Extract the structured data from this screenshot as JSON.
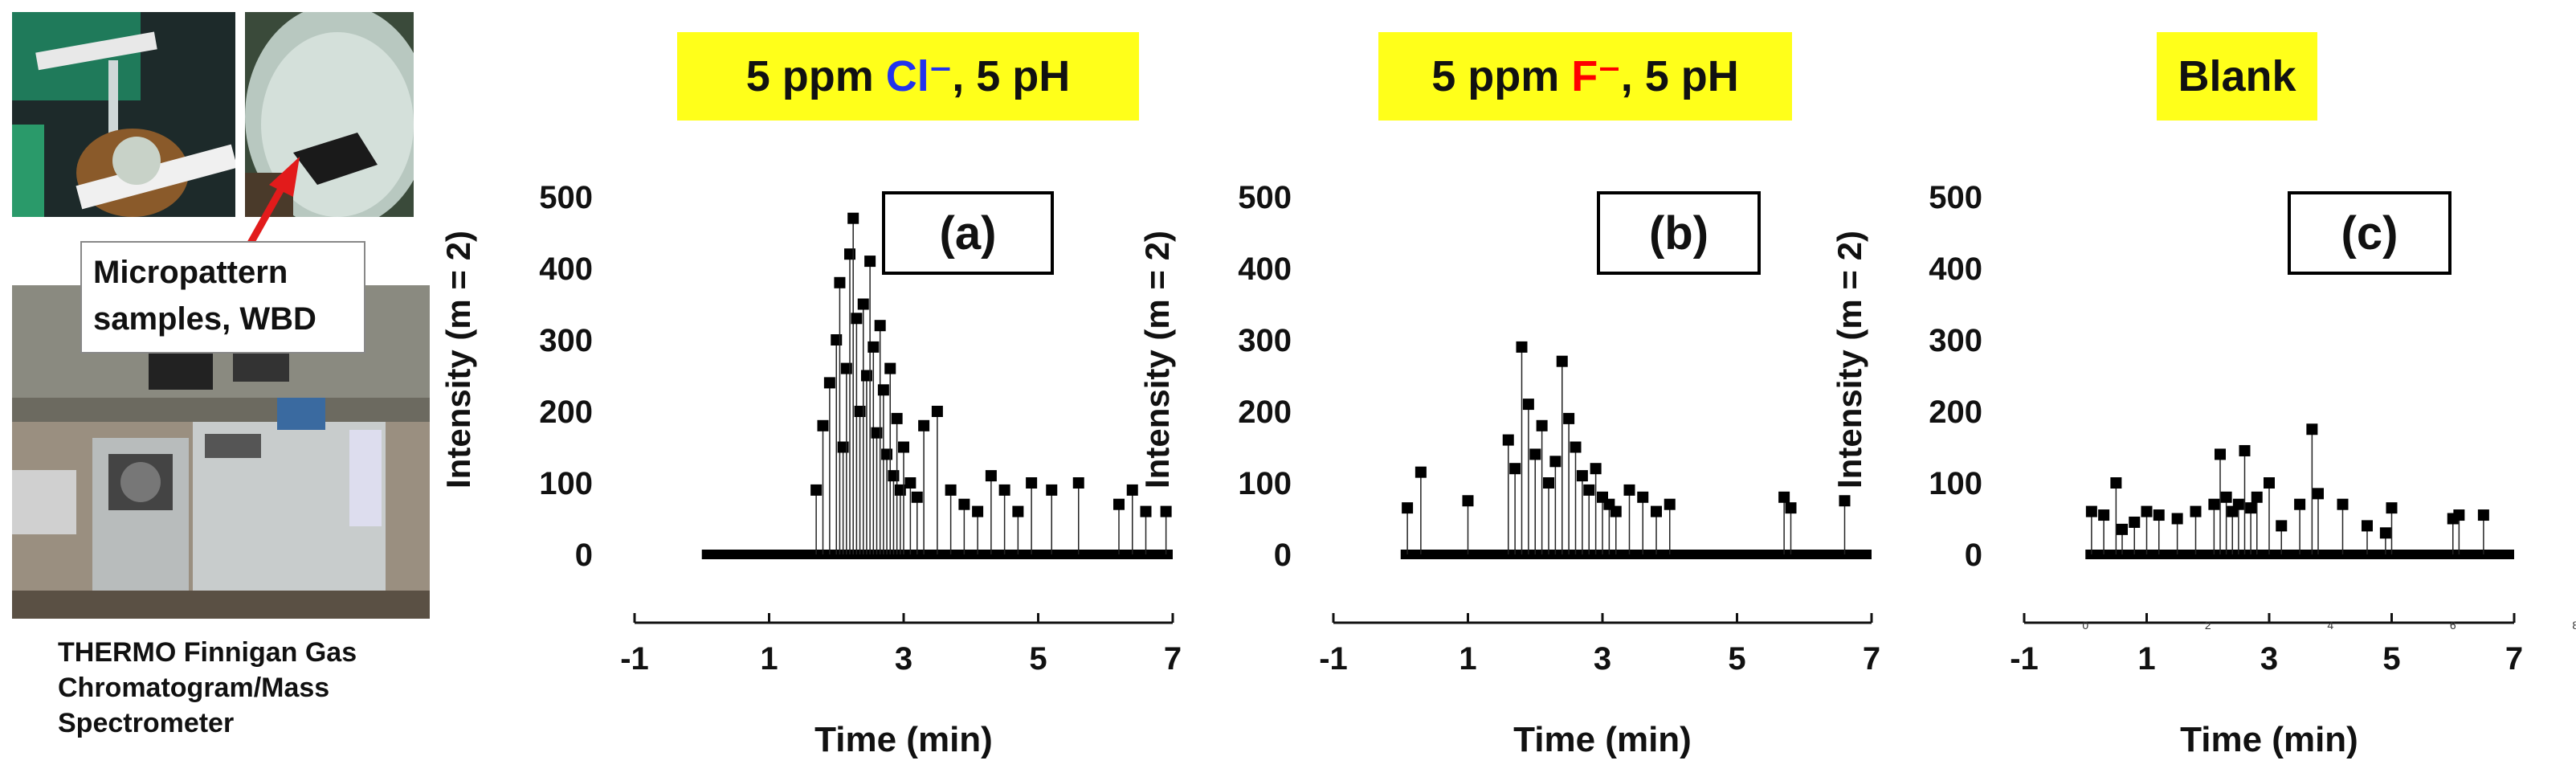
{
  "captions": {
    "micropattern": [
      "Micropattern",
      "samples, WBD"
    ],
    "instrument": [
      "THERMO Finnigan Gas",
      "Chromatogram/Mass",
      "Spectrometer"
    ]
  },
  "colors": {
    "title_bg": "#ffff1a",
    "chloride": "#2233ee",
    "fluoride": "#ff0000"
  },
  "panels": [
    {
      "title_pre": "5 ppm ",
      "ion": "Cl⁻",
      "title_post": ", 5 pH",
      "ion_color": "#2233ee",
      "label": "(a)"
    },
    {
      "title_pre": "5 ppm ",
      "ion": "F⁻",
      "title_post": ", 5 pH",
      "ion_color": "#ff0000",
      "label": "(b)"
    },
    {
      "title_pre": "Blank",
      "ion": "",
      "title_post": "",
      "ion_color": "#000000",
      "label": "(c)"
    }
  ],
  "chart_data": [
    {
      "type": "scatter",
      "title": "5 ppm Cl⁻, 5 pH",
      "panel_label": "(a)",
      "xlabel": "Time (min)",
      "ylabel": "Intensity (m = 2)",
      "xlim": [
        -1,
        7
      ],
      "ylim": [
        0,
        500
      ],
      "xticks": [
        -1,
        1,
        3,
        5,
        7
      ],
      "yticks": [
        0,
        100,
        200,
        300,
        400,
        500
      ],
      "baseline": [
        0,
        7
      ],
      "x": [
        1.7,
        1.8,
        1.9,
        2.0,
        2.05,
        2.1,
        2.15,
        2.2,
        2.25,
        2.3,
        2.35,
        2.4,
        2.45,
        2.5,
        2.55,
        2.6,
        2.65,
        2.7,
        2.75,
        2.8,
        2.85,
        2.9,
        2.95,
        3.0,
        3.1,
        3.2,
        3.3,
        3.5,
        3.7,
        3.9,
        4.1,
        4.3,
        4.5,
        4.7,
        4.9,
        5.2,
        5.6,
        6.2,
        6.4,
        6.6,
        6.9
      ],
      "y": [
        90,
        180,
        240,
        300,
        380,
        150,
        260,
        420,
        470,
        330,
        200,
        350,
        250,
        410,
        290,
        170,
        320,
        230,
        140,
        260,
        110,
        190,
        90,
        150,
        100,
        80,
        180,
        200,
        90,
        70,
        60,
        110,
        90,
        60,
        100,
        90,
        100,
        70,
        90,
        60,
        60
      ]
    },
    {
      "type": "scatter",
      "title": "5 ppm F⁻, 5 pH",
      "panel_label": "(b)",
      "xlabel": "Time (min)",
      "ylabel": "Intensity (m = 2)",
      "xlim": [
        -1,
        7
      ],
      "ylim": [
        0,
        500
      ],
      "xticks": [
        -1,
        1,
        3,
        5,
        7
      ],
      "yticks": [
        0,
        100,
        200,
        300,
        400,
        500
      ],
      "baseline": [
        0,
        7
      ],
      "x": [
        0.1,
        0.3,
        1.0,
        1.6,
        1.7,
        1.8,
        1.9,
        2.0,
        2.1,
        2.2,
        2.3,
        2.4,
        2.5,
        2.6,
        2.7,
        2.8,
        2.9,
        3.0,
        3.1,
        3.2,
        3.4,
        3.6,
        3.8,
        4.0,
        5.7,
        5.8,
        6.6
      ],
      "y": [
        65,
        115,
        75,
        160,
        120,
        290,
        210,
        140,
        180,
        100,
        130,
        270,
        190,
        150,
        110,
        90,
        120,
        80,
        70,
        60,
        90,
        80,
        60,
        70,
        80,
        65,
        75
      ]
    },
    {
      "type": "scatter",
      "title": "Blank",
      "panel_label": "(c)",
      "xlabel": "Time (min)",
      "ylabel": "Intensity (m = 2)",
      "xlim": [
        -1,
        7
      ],
      "ylim": [
        0,
        500
      ],
      "xticks": [
        -1,
        1,
        3,
        5,
        7
      ],
      "yticks": [
        0,
        100,
        200,
        300,
        400,
        500
      ],
      "minor_xticks": [
        0,
        2,
        4,
        6,
        8
      ],
      "baseline": [
        0,
        7
      ],
      "x": [
        0.1,
        0.3,
        0.5,
        0.6,
        0.8,
        1.0,
        1.2,
        1.5,
        1.8,
        2.1,
        2.2,
        2.3,
        2.4,
        2.5,
        2.6,
        2.7,
        2.8,
        3.0,
        3.2,
        3.5,
        3.7,
        3.8,
        4.2,
        4.6,
        4.9,
        5.0,
        6.0,
        6.1,
        6.5
      ],
      "y": [
        60,
        55,
        100,
        35,
        45,
        60,
        55,
        50,
        60,
        70,
        140,
        80,
        60,
        70,
        145,
        65,
        80,
        100,
        40,
        70,
        175,
        85,
        70,
        40,
        30,
        65,
        50,
        55,
        55
      ]
    }
  ]
}
